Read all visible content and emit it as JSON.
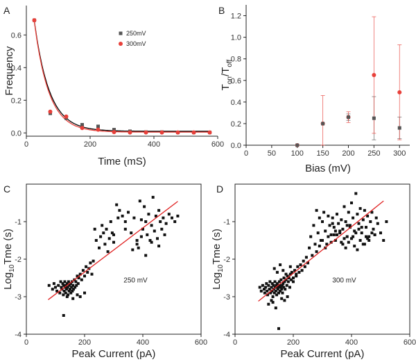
{
  "chart_data": [
    {
      "panel": "A",
      "type": "scatter",
      "xlabel": "Time (mS)",
      "ylabel": "Frequency",
      "xlim": [
        0,
        600
      ],
      "ylim": [
        -0.02,
        0.78
      ],
      "xticks": [
        "0",
        "200",
        "400",
        "600"
      ],
      "yticks": [
        "0.0",
        "0.2",
        "0.4",
        "0.6"
      ],
      "legend_position": "upper-right",
      "series": [
        {
          "name": "250mV",
          "color": "#555555",
          "marker": "square",
          "x": [
            25,
            75,
            125,
            175,
            225,
            275,
            325,
            375,
            425,
            475,
            525,
            575
          ],
          "y": [
            0.69,
            0.12,
            0.09,
            0.05,
            0.04,
            0.02,
            0.01,
            0.005,
            0.005,
            0.003,
            0.003,
            0.003
          ]
        },
        {
          "name": "300mV",
          "color": "#e8403a",
          "marker": "circle",
          "x": [
            25,
            75,
            125,
            175,
            225,
            275,
            325,
            375,
            425,
            475,
            525,
            575
          ],
          "y": [
            0.69,
            0.13,
            0.1,
            0.03,
            0.02,
            0.005,
            0.003,
            0.003,
            0.003,
            0.003,
            0.003,
            0.003
          ]
        }
      ],
      "fits": [
        {
          "color": "#000000",
          "model": "exponential",
          "a": 1.15,
          "tau": 47,
          "c": 0.01
        },
        {
          "color": "#e8403a",
          "model": "exponential",
          "a": 1.18,
          "tau": 45,
          "c": 0.005
        }
      ]
    },
    {
      "panel": "B",
      "type": "scatter",
      "xlabel": "Bias (mV)",
      "ylabel": {
        "main": "T",
        "sub1": "on",
        "mid": "/T",
        "sub2": "off"
      },
      "xlim": [
        0,
        320
      ],
      "ylim": [
        0,
        1.3
      ],
      "xticks": [
        "0",
        "50",
        "100",
        "150",
        "200",
        "250",
        "300"
      ],
      "yticks": [
        "0.0",
        "0.2",
        "0.4",
        "0.6",
        "0.8",
        "1.0",
        "1.2"
      ],
      "series": [
        {
          "name": "",
          "color": "#555555",
          "marker": "square",
          "points": [
            {
              "x": 100,
              "y": 0.0,
              "err": 0.0
            },
            {
              "x": 150,
              "y": 0.2,
              "err": 0.0
            },
            {
              "x": 200,
              "y": 0.26,
              "err": 0.03
            },
            {
              "x": 250,
              "y": 0.25,
              "err": 0.2
            },
            {
              "x": 300,
              "y": 0.16,
              "err": 0.1
            }
          ]
        },
        {
          "name": "",
          "color": "#e8403a",
          "marker": "circle",
          "points": [
            {
              "x": 100,
              "y": 0.0,
              "err": 0.0
            },
            {
              "x": 150,
              "y": 0.2,
              "err": 0.26
            },
            {
              "x": 200,
              "y": 0.26,
              "err": 0.05
            },
            {
              "x": 250,
              "y": 0.65,
              "err": 0.54
            },
            {
              "x": 300,
              "y": 0.49,
              "err": 0.44
            }
          ]
        }
      ]
    },
    {
      "panel": "C",
      "type": "scatter",
      "xlabel": "Peak Current (pA)",
      "ylabel": {
        "pre": "Log",
        "sub": "10",
        "post": "Tme (s)"
      },
      "annotation": "250 mV",
      "xlim": [
        0,
        600
      ],
      "ylim": [
        -4,
        0
      ],
      "xticks": [
        "0",
        "200",
        "400",
        "600"
      ],
      "yticks": [
        "-4",
        "-3",
        "-2",
        "-1"
      ],
      "marker_color": "#111111",
      "fit": {
        "color": "#e02020",
        "x": [
          75,
          520
        ],
        "y": [
          -3.08,
          -0.46
        ]
      },
      "x": [
        78,
        90,
        95,
        100,
        105,
        110,
        115,
        118,
        120,
        122,
        125,
        127,
        128,
        130,
        132,
        133,
        135,
        137,
        138,
        140,
        142,
        143,
        145,
        147,
        148,
        150,
        152,
        153,
        155,
        157,
        158,
        160,
        162,
        165,
        167,
        170,
        172,
        175,
        178,
        180,
        185,
        190,
        195,
        200,
        205,
        210,
        215,
        220,
        225,
        230,
        128,
        140,
        160,
        175,
        185,
        200,
        235,
        240,
        250,
        255,
        260,
        265,
        270,
        275,
        280,
        285,
        290,
        295,
        300,
        310,
        315,
        320,
        330,
        340,
        350,
        360,
        370,
        380,
        385,
        390,
        395,
        400,
        405,
        410,
        415,
        420,
        425,
        430,
        435,
        440,
        445,
        450,
        455,
        460,
        465,
        470,
        475,
        480,
        490,
        500,
        510,
        520,
        380,
        395,
        410,
        340,
        365,
        430,
        455,
        300
      ],
      "y": [
        -2.7,
        -2.8,
        -2.65,
        -2.75,
        -2.85,
        -2.7,
        -2.9,
        -2.6,
        -2.75,
        -2.8,
        -2.65,
        -2.95,
        -2.7,
        -2.85,
        -2.6,
        -2.75,
        -2.9,
        -2.7,
        -2.8,
        -2.65,
        -2.75,
        -2.95,
        -2.6,
        -2.85,
        -2.7,
        -2.8,
        -2.65,
        -2.9,
        -2.75,
        -2.6,
        -2.85,
        -2.7,
        -2.8,
        -2.55,
        -2.75,
        -2.6,
        -2.7,
        -2.45,
        -2.65,
        -2.5,
        -2.4,
        -2.55,
        -2.3,
        -2.45,
        -2.2,
        -2.35,
        -2.25,
        -2.1,
        -2.4,
        -2.05,
        -3.5,
        -3.0,
        -3.05,
        -2.95,
        -3.0,
        -2.9,
        -1.2,
        -1.5,
        -1.7,
        -1.4,
        -1.1,
        -1.3,
        -1.6,
        -1.2,
        -1.8,
        -1.45,
        -1.0,
        -1.3,
        -1.55,
        -0.55,
        -0.9,
        -0.7,
        -0.85,
        -1.0,
        -0.75,
        -1.3,
        -0.9,
        -1.5,
        -1.7,
        -0.45,
        -0.95,
        -1.2,
        -0.6,
        -1.0,
        -1.35,
        -0.8,
        -1.5,
        -1.1,
        -0.35,
        -1.25,
        -0.85,
        -1.45,
        -0.7,
        -1.0,
        -1.2,
        -0.9,
        -1.35,
        -1.05,
        -0.8,
        -0.9,
        -1.0,
        -0.85,
        -1.6,
        -1.4,
        -1.9,
        -1.2,
        -1.75,
        -1.55,
        -1.65,
        -1.35
      ]
    },
    {
      "panel": "D",
      "type": "scatter",
      "xlabel": "Peak Current (pA)",
      "ylabel": {
        "pre": "Log",
        "sub": "10",
        "post": "Tme (s)"
      },
      "annotation": "300 mV",
      "xlim": [
        0,
        600
      ],
      "ylim": [
        -4,
        0
      ],
      "xticks": [
        "0",
        "200",
        "400",
        "600"
      ],
      "yticks": [
        "-4",
        "-3",
        "-2",
        "-1"
      ],
      "marker_color": "#111111",
      "fit": {
        "color": "#e02020",
        "x": [
          80,
          510
        ],
        "y": [
          -3.12,
          -0.45
        ]
      },
      "x": [
        85,
        90,
        95,
        100,
        102,
        105,
        108,
        110,
        112,
        115,
        118,
        120,
        122,
        125,
        127,
        128,
        130,
        132,
        133,
        135,
        137,
        138,
        140,
        142,
        143,
        145,
        147,
        148,
        150,
        152,
        153,
        155,
        157,
        158,
        160,
        162,
        163,
        165,
        167,
        168,
        170,
        172,
        175,
        178,
        180,
        183,
        185,
        188,
        190,
        193,
        195,
        200,
        205,
        210,
        215,
        220,
        225,
        230,
        235,
        240,
        245,
        250,
        140,
        150,
        130,
        160,
        170,
        180,
        115,
        125,
        135,
        145,
        155,
        165,
        175,
        190,
        200,
        210,
        255,
        260,
        265,
        270,
        275,
        280,
        285,
        290,
        295,
        300,
        305,
        310,
        315,
        320,
        325,
        330,
        335,
        340,
        345,
        350,
        355,
        360,
        365,
        370,
        375,
        380,
        385,
        390,
        395,
        400,
        405,
        410,
        415,
        420,
        425,
        430,
        435,
        440,
        445,
        450,
        455,
        460,
        465,
        470,
        475,
        480,
        485,
        490,
        500,
        510,
        520,
        370,
        380,
        390,
        400,
        410,
        420,
        430,
        440,
        360,
        350,
        395,
        405,
        415,
        425,
        385,
        375,
        365,
        345,
        335,
        450,
        460,
        470,
        480,
        435,
        445,
        455,
        280,
        290,
        300,
        310,
        320,
        330,
        340
      ],
      "y": [
        -2.75,
        -2.85,
        -2.7,
        -2.8,
        -2.9,
        -2.75,
        -2.65,
        -2.85,
        -2.95,
        -2.7,
        -2.8,
        -2.6,
        -2.9,
        -2.75,
        -2.85,
        -2.65,
        -3.0,
        -2.7,
        -2.8,
        -2.9,
        -2.6,
        -2.75,
        -2.85,
        -2.7,
        -2.95,
        -2.65,
        -2.8,
        -2.75,
        -2.9,
        -2.6,
        -2.7,
        -2.85,
        -2.75,
        -2.55,
        -2.8,
        -2.7,
        -2.9,
        -2.65,
        -2.75,
        -2.5,
        -2.6,
        -2.8,
        -2.55,
        -2.7,
        -2.45,
        -2.6,
        -2.5,
        -2.75,
        -2.4,
        -2.55,
        -2.35,
        -2.5,
        -2.3,
        -2.45,
        -2.2,
        -2.35,
        -2.15,
        -2.3,
        -2.05,
        -2.2,
        -1.95,
        -2.1,
        -3.3,
        -3.85,
        -3.15,
        -3.05,
        -3.1,
        -3.0,
        -3.2,
        -3.1,
        -2.25,
        -2.35,
        -2.15,
        -2.3,
        -2.4,
        -2.2,
        -2.6,
        -2.4,
        -1.7,
        -1.4,
        -1.9,
        -1.1,
        -1.6,
        -0.7,
        -1.3,
        -0.9,
        -1.5,
        -1.0,
        -0.75,
        -1.25,
        -1.6,
        -0.85,
        -1.1,
        -1.35,
        -0.9,
        -1.15,
        -1.5,
        -0.8,
        -1.05,
        -1.3,
        -0.95,
        -1.2,
        -0.6,
        -1.0,
        -1.4,
        -0.75,
        -1.1,
        -0.5,
        -0.9,
        -1.25,
        -0.25,
        -0.8,
        -1.05,
        -0.65,
        -1.3,
        -0.95,
        -0.7,
        -1.15,
        -0.85,
        -1.4,
        -1.0,
        -0.75,
        -1.2,
        -1.35,
        -0.9,
        -1.05,
        -1.3,
        -1.5,
        -1.0,
        -1.6,
        -1.7,
        -1.55,
        -1.45,
        -1.65,
        -1.75,
        -1.5,
        -1.6,
        -1.25,
        -1.35,
        -1.15,
        -1.4,
        -1.3,
        -1.2,
        -1.1,
        -1.45,
        -1.55,
        -1.25,
        -1.05,
        -1.4,
        -1.5,
        -1.3,
        -1.35,
        -1.15,
        -1.6,
        -1.45,
        -1.8,
        -1.65,
        -1.5,
        -1.7,
        -1.4,
        -1.55,
        -1.35
      ]
    }
  ]
}
